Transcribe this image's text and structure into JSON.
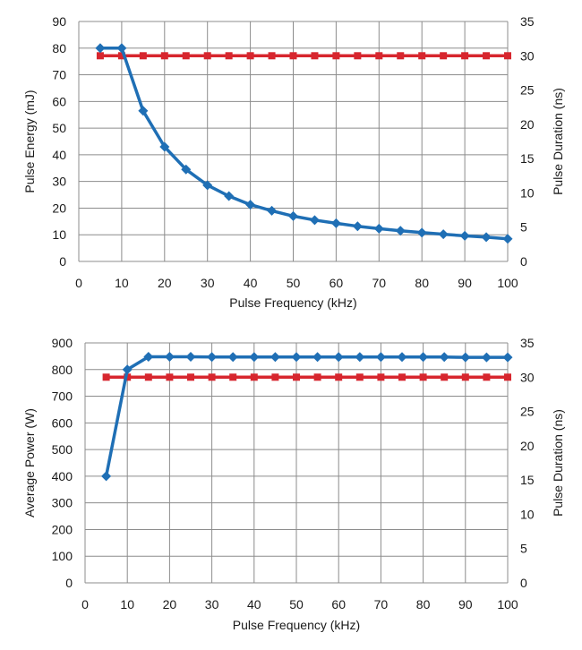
{
  "chart_data": [
    {
      "type": "line",
      "xlabel": "Pulse Frequency (kHz)",
      "ylabel": "Pulse Energy (mJ)",
      "y2label": "Pulse Duration (ns)",
      "xlim": [
        0,
        100
      ],
      "ylim": [
        0,
        90
      ],
      "y2lim": [
        0,
        35
      ],
      "xticks": [
        0,
        10,
        20,
        30,
        40,
        50,
        60,
        70,
        80,
        90,
        100
      ],
      "yticks": [
        0,
        10,
        20,
        30,
        40,
        50,
        60,
        70,
        80,
        90
      ],
      "y2ticks": [
        0,
        5,
        10,
        15,
        20,
        25,
        30,
        35
      ],
      "grid": true,
      "series": [
        {
          "axis": "left",
          "color": "#1f6fb5",
          "marker": "diamond",
          "x": [
            5,
            10,
            15,
            20,
            25,
            30,
            35,
            40,
            45,
            50,
            55,
            60,
            65,
            70,
            75,
            80,
            85,
            90,
            95,
            100
          ],
          "values": [
            80,
            80,
            56.5,
            43,
            34.5,
            28.6,
            24.5,
            21.3,
            19,
            17,
            15.5,
            14.3,
            13.2,
            12.3,
            11.5,
            10.8,
            10.2,
            9.6,
            9.1,
            8.5
          ]
        },
        {
          "axis": "right",
          "color": "#d7262e",
          "marker": "square",
          "x": [
            5,
            10,
            15,
            20,
            25,
            30,
            35,
            40,
            45,
            50,
            55,
            60,
            65,
            70,
            75,
            80,
            85,
            90,
            95,
            100
          ],
          "values": [
            30,
            30,
            30,
            30,
            30,
            30,
            30,
            30,
            30,
            30,
            30,
            30,
            30,
            30,
            30,
            30,
            30,
            30,
            30,
            30
          ]
        }
      ]
    },
    {
      "type": "line",
      "xlabel": "Pulse Frequency (kHz)",
      "ylabel": "Average Power (W)",
      "y2label": "Pulse Duration (ns)",
      "xlim": [
        0,
        100
      ],
      "ylim": [
        0,
        900
      ],
      "y2lim": [
        0,
        35
      ],
      "xticks": [
        0,
        10,
        20,
        30,
        40,
        50,
        60,
        70,
        80,
        90,
        100
      ],
      "yticks": [
        0,
        100,
        200,
        300,
        400,
        500,
        600,
        700,
        800,
        900
      ],
      "y2ticks": [
        0,
        5,
        10,
        15,
        20,
        25,
        30,
        35
      ],
      "grid": true,
      "series": [
        {
          "axis": "left",
          "color": "#1f6fb5",
          "marker": "diamond",
          "x": [
            5,
            10,
            15,
            20,
            25,
            30,
            35,
            40,
            45,
            50,
            55,
            60,
            65,
            70,
            75,
            80,
            85,
            90,
            95,
            100
          ],
          "values": [
            400,
            800,
            848,
            848,
            848,
            847,
            847,
            847,
            847,
            847,
            847,
            847,
            847,
            847,
            847,
            847,
            847,
            846,
            846,
            846
          ]
        },
        {
          "axis": "right",
          "color": "#d7262e",
          "marker": "square",
          "x": [
            5,
            10,
            15,
            20,
            25,
            30,
            35,
            40,
            45,
            50,
            55,
            60,
            65,
            70,
            75,
            80,
            85,
            90,
            95,
            100
          ],
          "values": [
            30,
            30,
            30,
            30,
            30,
            30,
            30,
            30,
            30,
            30,
            30,
            30,
            30,
            30,
            30,
            30,
            30,
            30,
            30,
            30
          ]
        }
      ]
    }
  ]
}
